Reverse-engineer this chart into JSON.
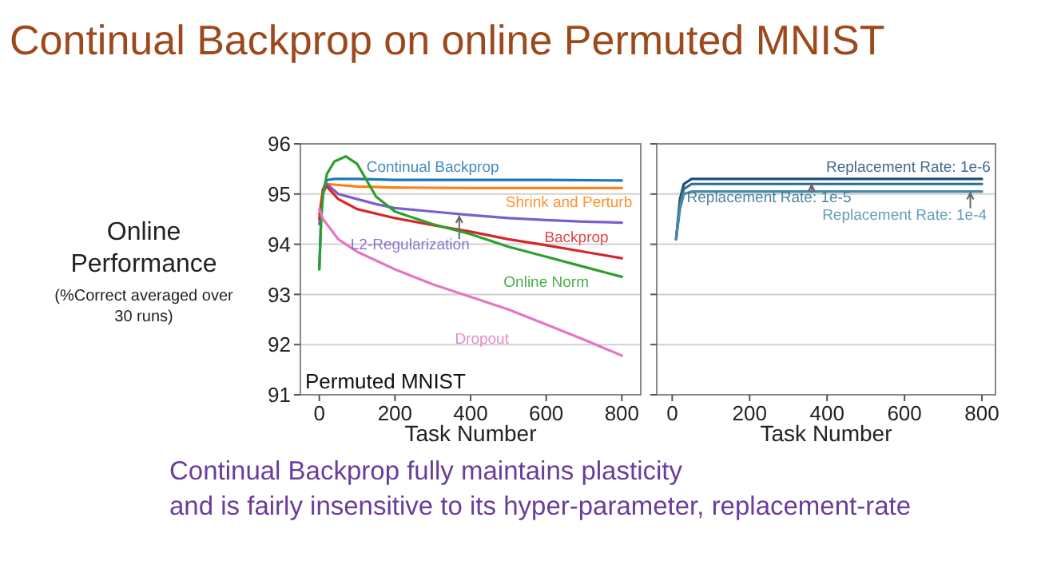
{
  "chart_data": [
    {
      "type": "line",
      "title": "Continual Backprop on online Permuted MNIST",
      "ylabel": "Online Performance",
      "xlabel": "Task Number",
      "annotations": [
        "Permuted MNIST",
        "(%Correct averaged over 30 runs)"
      ],
      "xlim": [
        -50,
        850
      ],
      "ylim": [
        91,
        96
      ],
      "xticks": [
        0,
        200,
        400,
        600,
        800
      ],
      "yticks": [
        91,
        92,
        93,
        94,
        95,
        96
      ],
      "grid": "y",
      "series": [
        {
          "name": "Continual Backprop",
          "color": "#1f77b4",
          "x": [
            0,
            5,
            10,
            20,
            40,
            100,
            200,
            400,
            600,
            800
          ],
          "values": [
            93.5,
            94.6,
            95.1,
            95.28,
            95.3,
            95.3,
            95.28,
            95.28,
            95.28,
            95.27
          ]
        },
        {
          "name": "Shrink and Perturb",
          "color": "#ff7f0e",
          "x": [
            0,
            10,
            20,
            50,
            100,
            200,
            400,
            600,
            800
          ],
          "values": [
            94.6,
            95.1,
            95.2,
            95.18,
            95.15,
            95.13,
            95.12,
            95.12,
            95.12
          ]
        },
        {
          "name": "L2-Regularization",
          "color": "#7b5fc9",
          "x": [
            0,
            10,
            20,
            50,
            100,
            150,
            200,
            300,
            400,
            500,
            600,
            700,
            800
          ],
          "values": [
            94.4,
            95.0,
            95.2,
            95.0,
            94.9,
            94.8,
            94.72,
            94.65,
            94.58,
            94.52,
            94.48,
            94.45,
            94.43
          ]
        },
        {
          "name": "Backprop",
          "color": "#d62728",
          "x": [
            0,
            10,
            20,
            50,
            100,
            200,
            300,
            400,
            500,
            600,
            700,
            800
          ],
          "values": [
            94.5,
            95.1,
            95.15,
            94.9,
            94.7,
            94.52,
            94.38,
            94.25,
            94.1,
            93.98,
            93.85,
            93.72
          ]
        },
        {
          "name": "Online Norm",
          "color": "#2ca02c",
          "x": [
            0,
            5,
            10,
            20,
            40,
            70,
            100,
            150,
            200,
            300,
            400,
            500,
            600,
            700,
            800
          ],
          "values": [
            93.5,
            94.5,
            95.0,
            95.4,
            95.65,
            95.75,
            95.6,
            94.95,
            94.65,
            94.4,
            94.2,
            93.95,
            93.75,
            93.55,
            93.35
          ]
        },
        {
          "name": "Dropout",
          "color": "#e377c2",
          "x": [
            0,
            10,
            50,
            100,
            200,
            300,
            400,
            500,
            600,
            700,
            800
          ],
          "values": [
            94.7,
            94.5,
            94.1,
            93.85,
            93.5,
            93.2,
            92.95,
            92.7,
            92.4,
            92.1,
            91.78
          ]
        }
      ]
    },
    {
      "type": "line",
      "xlabel": "Task Number",
      "annotations": [
        "Continual Backprop fully maintains plasticity",
        "and is fairly insensitive to its hyper-parameter, replacement-rate"
      ],
      "xlim": [
        -40,
        835
      ],
      "ylim": [
        91,
        96
      ],
      "xticks": [
        0,
        200,
        400,
        600,
        800
      ],
      "yticks": [
        91,
        92,
        93,
        94,
        95,
        96
      ],
      "grid": "y",
      "tick_labels": "x",
      "series": [
        {
          "name": "Replacement Rate: 1e-6",
          "color": "#1f4e79",
          "x": [
            10,
            20,
            30,
            50,
            100,
            200,
            400,
            600,
            800
          ],
          "values": [
            94.1,
            94.9,
            95.2,
            95.3,
            95.3,
            95.3,
            95.3,
            95.3,
            95.3
          ]
        },
        {
          "name": "Replacement Rate: 1e-5",
          "color": "#2f6f8f",
          "x": [
            10,
            20,
            30,
            50,
            100,
            200,
            400,
            600,
            800
          ],
          "values": [
            94.1,
            94.8,
            95.1,
            95.2,
            95.2,
            95.2,
            95.2,
            95.2,
            95.2
          ]
        },
        {
          "name": "Replacement Rate: 1e-4",
          "color": "#4a8ca8",
          "x": [
            10,
            20,
            30,
            50,
            100,
            200,
            400,
            600,
            800
          ],
          "values": [
            94.1,
            94.7,
            95.0,
            95.05,
            95.05,
            95.05,
            95.05,
            95.05,
            95.05
          ]
        }
      ]
    }
  ]
}
